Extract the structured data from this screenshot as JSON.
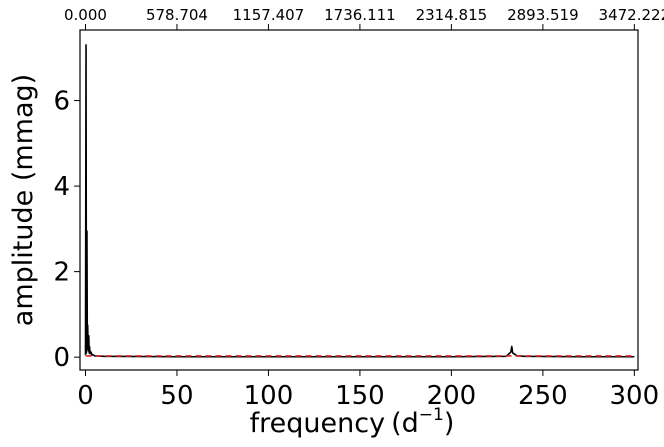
{
  "chart_data": {
    "type": "line",
    "xlabel": "frequency",
    "xlabel_unit": "(d",
    "xlabel_unit_sup": "−1",
    "xlabel_unit_close": ")",
    "ylabel": "amplitude (mmag)",
    "xlim": [
      -3,
      302
    ],
    "ylim": [
      -0.3,
      7.65
    ],
    "x_ticks": [
      0,
      50,
      100,
      150,
      200,
      250,
      300
    ],
    "x_tick_labels": [
      "0",
      "50",
      "100",
      "150",
      "200",
      "250",
      "300"
    ],
    "y_ticks": [
      0,
      2,
      4,
      6
    ],
    "y_tick_labels": [
      "0",
      "2",
      "4",
      "6"
    ],
    "top_axis_ticks": [
      0,
      50,
      100,
      150,
      200,
      250,
      300
    ],
    "top_axis_tick_labels": [
      "0.000",
      "578.704",
      "1157.407",
      "1736.111",
      "2314.815",
      "2893.519",
      "3472.222"
    ],
    "grid": false,
    "series": [
      {
        "color": "#000000",
        "style": "solid",
        "x": [
          0.0,
          0.3,
          0.5,
          0.8,
          1.0,
          1.2,
          1.5,
          1.8,
          2.0,
          2.2,
          2.5,
          3.0,
          3.5,
          4.0,
          5.0,
          10.0,
          50.0,
          100.0,
          150.0,
          200.0,
          230.0,
          231.5,
          232.5,
          233.0,
          233.5,
          234.5,
          236.0,
          240.0,
          270.0,
          300.0
        ],
        "y": [
          0.05,
          7.3,
          0.1,
          2.95,
          0.2,
          0.75,
          0.15,
          0.5,
          0.1,
          0.25,
          0.08,
          0.12,
          0.05,
          0.06,
          0.03,
          0.02,
          0.01,
          0.01,
          0.01,
          0.01,
          0.02,
          0.08,
          0.12,
          0.25,
          0.1,
          0.07,
          0.03,
          0.02,
          0.01,
          0.01
        ]
      },
      {
        "color": "#d62728",
        "style": "dashed",
        "x": [
          0,
          300
        ],
        "y": [
          0.03,
          0.03
        ]
      }
    ]
  }
}
